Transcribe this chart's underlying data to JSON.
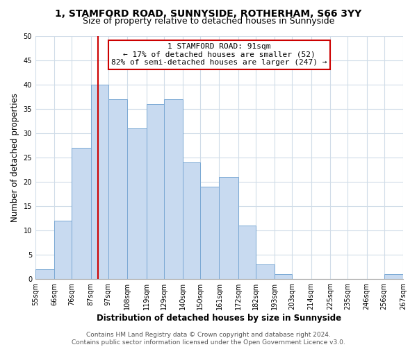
{
  "title": "1, STAMFORD ROAD, SUNNYSIDE, ROTHERHAM, S66 3YY",
  "subtitle": "Size of property relative to detached houses in Sunnyside",
  "xlabel": "Distribution of detached houses by size in Sunnyside",
  "ylabel": "Number of detached properties",
  "bin_edges": [
    55,
    66,
    76,
    87,
    97,
    108,
    119,
    129,
    140,
    150,
    161,
    172,
    182,
    193,
    203,
    214,
    225,
    235,
    246,
    256,
    267
  ],
  "bar_heights": [
    2,
    12,
    27,
    40,
    37,
    31,
    36,
    37,
    24,
    19,
    21,
    11,
    3,
    1,
    0,
    0,
    0,
    0,
    0,
    1
  ],
  "bin_labels": [
    "55sqm",
    "66sqm",
    "76sqm",
    "87sqm",
    "97sqm",
    "108sqm",
    "119sqm",
    "129sqm",
    "140sqm",
    "150sqm",
    "161sqm",
    "172sqm",
    "182sqm",
    "193sqm",
    "203sqm",
    "214sqm",
    "225sqm",
    "235sqm",
    "246sqm",
    "256sqm",
    "267sqm"
  ],
  "bar_color": "#c8daf0",
  "bar_edge_color": "#7aa8d4",
  "property_line_x": 91,
  "property_line_color": "#cc0000",
  "annotation_line1": "1 STAMFORD ROAD: 91sqm",
  "annotation_line2": "← 17% of detached houses are smaller (52)",
  "annotation_line3": "82% of semi-detached houses are larger (247) →",
  "annotation_box_color": "#ffffff",
  "annotation_box_edge": "#cc0000",
  "ylim": [
    0,
    50
  ],
  "yticks": [
    0,
    5,
    10,
    15,
    20,
    25,
    30,
    35,
    40,
    45,
    50
  ],
  "footer_text": "Contains HM Land Registry data © Crown copyright and database right 2024.\nContains public sector information licensed under the Open Government Licence v3.0.",
  "background_color": "#ffffff",
  "grid_color": "#d0dce8",
  "title_fontsize": 10,
  "subtitle_fontsize": 9,
  "axis_label_fontsize": 8.5,
  "tick_fontsize": 7,
  "annotation_fontsize": 8,
  "footer_fontsize": 6.5
}
